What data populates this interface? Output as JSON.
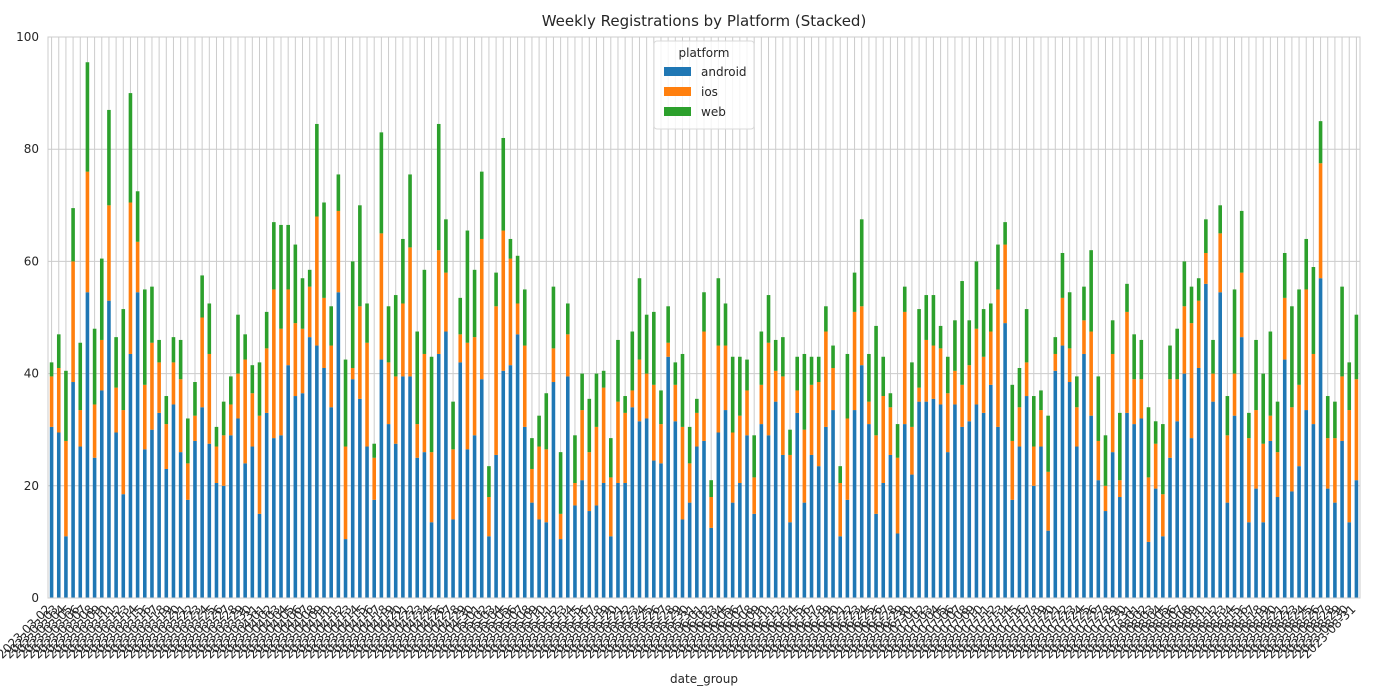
{
  "chart_data": {
    "type": "stacked_bar",
    "title": "Weekly Registrations by Platform (Stacked)",
    "x_label": "date_group",
    "legend_title": "platform",
    "legend_position": "upper center",
    "grid": true,
    "ylim": [
      0,
      100
    ],
    "yticks": [
      0,
      20,
      40,
      60,
      80,
      100
    ],
    "categories": [
      "2023-03-02",
      "2023-03-03",
      "2023-03-04",
      "2023-03-05",
      "2023-03-06",
      "2023-03-07",
      "2023-03-08",
      "2023-03-09",
      "2023-03-10",
      "2023-03-11",
      "2023-03-12",
      "2023-03-13",
      "2023-03-14",
      "2023-03-15",
      "2023-03-16",
      "2023-03-17",
      "2023-03-18",
      "2023-03-19",
      "2023-03-20",
      "2023-03-21",
      "2023-03-22",
      "2023-03-23",
      "2023-03-24",
      "2023-03-25",
      "2023-03-26",
      "2023-03-27",
      "2023-03-28",
      "2023-03-29",
      "2023-03-30",
      "2023-03-31",
      "2023-04-01",
      "2023-04-02",
      "2023-04-03",
      "2023-04-04",
      "2023-04-05",
      "2023-04-06",
      "2023-04-07",
      "2023-04-08",
      "2023-04-09",
      "2023-04-10",
      "2023-04-11",
      "2023-04-12",
      "2023-04-13",
      "2023-04-14",
      "2023-04-15",
      "2023-04-16",
      "2023-04-17",
      "2023-04-18",
      "2023-04-19",
      "2023-04-20",
      "2023-04-21",
      "2023-04-22",
      "2023-04-23",
      "2023-04-24",
      "2023-04-25",
      "2023-04-26",
      "2023-04-27",
      "2023-04-28",
      "2023-04-29",
      "2023-04-30",
      "2023-05-01",
      "2023-05-02",
      "2023-05-03",
      "2023-05-04",
      "2023-05-05",
      "2023-05-06",
      "2023-05-07",
      "2023-05-08",
      "2023-05-09",
      "2023-05-10",
      "2023-05-11",
      "2023-05-12",
      "2023-05-13",
      "2023-05-14",
      "2023-05-15",
      "2023-05-16",
      "2023-05-17",
      "2023-05-18",
      "2023-05-19",
      "2023-05-20",
      "2023-05-21",
      "2023-05-22",
      "2023-05-23",
      "2023-05-24",
      "2023-05-25",
      "2023-05-26",
      "2023-05-27",
      "2023-05-28",
      "2023-05-29",
      "2023-05-30",
      "2023-05-31",
      "2023-06-01",
      "2023-06-02",
      "2023-06-03",
      "2023-06-04",
      "2023-06-05",
      "2023-06-06",
      "2023-06-07",
      "2023-06-08",
      "2023-06-09",
      "2023-06-10",
      "2023-06-11",
      "2023-06-12",
      "2023-06-13",
      "2023-06-14",
      "2023-06-15",
      "2023-06-16",
      "2023-06-17",
      "2023-06-18",
      "2023-06-19",
      "2023-06-20",
      "2023-06-21",
      "2023-06-22",
      "2023-06-23",
      "2023-06-24",
      "2023-06-25",
      "2023-06-26",
      "2023-06-27",
      "2023-06-28",
      "2023-06-29",
      "2023-06-30",
      "2023-07-01",
      "2023-07-02",
      "2023-07-03",
      "2023-07-04",
      "2023-07-05",
      "2023-07-06",
      "2023-07-07",
      "2023-07-08",
      "2023-07-09",
      "2023-07-10",
      "2023-07-11",
      "2023-07-12",
      "2023-07-13",
      "2023-07-14",
      "2023-07-15",
      "2023-07-16",
      "2023-07-17",
      "2023-07-18",
      "2023-07-19",
      "2023-07-20",
      "2023-07-21",
      "2023-07-22",
      "2023-07-23",
      "2023-07-24",
      "2023-07-25",
      "2023-07-26",
      "2023-07-27",
      "2023-07-28",
      "2023-07-29",
      "2023-07-30",
      "2023-07-31",
      "2023-08-01",
      "2023-08-02",
      "2023-08-03",
      "2023-08-04",
      "2023-08-05",
      "2023-08-06",
      "2023-08-07",
      "2023-08-08",
      "2023-08-09",
      "2023-08-10",
      "2023-08-11",
      "2023-08-12",
      "2023-08-13",
      "2023-08-14",
      "2023-08-15",
      "2023-08-16",
      "2023-08-17",
      "2023-08-18",
      "2023-08-19",
      "2023-08-20",
      "2023-08-21",
      "2023-08-22",
      "2023-08-23",
      "2023-08-24",
      "2023-08-25",
      "2023-08-26",
      "2023-08-27",
      "2023-08-28",
      "2023-08-29",
      "2023-08-30",
      "2023-08-31"
    ],
    "series": [
      {
        "name": "android",
        "color": "#1f77b4",
        "values": [
          30.5,
          29.5,
          11,
          38.5,
          27,
          54.5,
          25,
          37,
          53,
          29.5,
          18.5,
          43.5,
          54.5,
          26.5,
          30,
          33,
          23,
          34.5,
          26,
          17.5,
          28,
          34,
          27.5,
          20.5,
          20,
          29,
          32,
          24,
          27,
          15,
          33,
          28.5,
          29,
          41.5,
          36,
          36.5,
          46.5,
          45,
          41,
          34,
          54.5,
          10.5,
          39,
          35.5,
          27,
          17.5,
          42.5,
          31,
          27.5,
          39.5,
          39.5,
          25,
          26,
          13.5,
          43.5,
          47.5,
          14,
          42,
          26.5,
          29,
          39,
          11,
          25.5,
          40.5,
          41.5,
          47,
          30.5,
          17,
          14,
          13.5,
          38.5,
          10.5,
          39.5,
          16.5,
          21,
          15.5,
          16.5,
          20.5,
          11,
          20.5,
          20.5,
          34,
          31.5,
          32,
          24.5,
          24,
          43,
          31.5,
          14,
          17,
          27,
          28,
          12.5,
          29.5,
          33.5,
          17,
          20.5,
          29,
          15,
          31,
          29,
          35,
          25.5,
          13.5,
          33,
          17,
          25.5,
          23.5,
          30.5,
          33.5,
          11,
          17.5,
          33.5,
          41.5,
          31,
          15,
          20.5,
          25.5,
          11.5,
          31,
          22,
          35,
          35,
          35.5,
          34.5,
          26,
          34.5,
          30.5,
          31.5,
          34.5,
          33,
          38,
          30.5,
          49,
          17.5,
          27,
          36,
          20,
          27,
          12,
          40.5,
          45,
          38.5,
          27,
          43.5,
          32.5,
          21,
          15.5,
          26,
          18,
          33,
          31,
          32,
          10,
          19.5,
          11,
          25,
          31.5,
          40,
          28.5,
          41,
          56,
          35,
          54.5,
          17,
          32.5,
          46.5,
          13.5,
          19.5,
          13.5,
          28,
          18,
          42.5,
          19,
          23.5,
          33.5,
          31,
          57,
          19.5,
          17,
          28,
          13.5,
          21
        ]
      },
      {
        "name": "ios",
        "color": "#ff7f0e",
        "values": [
          9,
          11.5,
          17,
          21.5,
          6.5,
          21.5,
          9.5,
          9,
          17,
          8,
          15,
          27,
          9,
          11.5,
          15.5,
          9,
          8,
          7.5,
          13,
          6.5,
          4.5,
          16,
          16,
          6.5,
          9,
          5.5,
          8,
          18.5,
          9.5,
          17.5,
          11.5,
          26.5,
          19,
          13.5,
          13,
          11.5,
          9,
          23,
          12.5,
          11,
          14.5,
          16.5,
          2,
          16.5,
          18.5,
          7.5,
          22.5,
          11,
          12,
          13,
          23,
          6,
          17.5,
          12.5,
          18.5,
          10.5,
          12.5,
          5,
          19,
          17.5,
          25,
          7,
          26.5,
          25,
          19,
          5.5,
          14.5,
          6,
          13,
          13,
          6,
          4.5,
          7.5,
          4,
          12.5,
          10.5,
          14,
          17,
          10.5,
          14.5,
          12.5,
          3,
          11,
          8,
          13.5,
          7,
          2.5,
          6.5,
          16.5,
          7,
          6,
          19.5,
          5.5,
          15.5,
          11.5,
          12.5,
          12,
          8,
          6.5,
          7,
          16.5,
          5.5,
          14,
          12,
          4,
          13,
          12.5,
          15,
          17,
          7.5,
          9.5,
          14.5,
          17.5,
          10.5,
          4,
          14,
          15.5,
          8.5,
          13.5,
          20,
          8.5,
          2.5,
          11,
          9.5,
          10,
          10.5,
          6,
          7.5,
          10,
          13.5,
          10,
          9.5,
          24.5,
          14,
          10.5,
          7,
          6,
          7,
          6.5,
          10.5,
          3,
          8.5,
          6,
          7,
          6,
          15,
          7,
          4.5,
          17.5,
          3,
          18,
          8,
          7,
          11.5,
          8,
          7.5,
          14,
          7.5,
          12,
          20.5,
          12,
          5.5,
          5,
          10.5,
          12,
          7.5,
          11.5,
          15,
          14,
          14,
          4.5,
          8,
          11,
          15,
          14.5,
          21.5,
          12.5,
          20.5,
          9,
          11.5,
          11.5,
          20,
          18
        ]
      },
      {
        "name": "web",
        "color": "#2ca02c",
        "values": [
          2.5,
          6,
          12.5,
          9.5,
          12,
          19.5,
          13.5,
          14.5,
          17,
          9,
          18,
          19.5,
          9,
          17,
          10,
          4,
          5,
          4.5,
          7,
          8,
          6,
          7.5,
          9,
          3.5,
          6,
          5,
          10.5,
          4.5,
          5,
          9.5,
          6.5,
          12,
          18.5,
          11.5,
          14,
          9,
          3,
          16.5,
          17,
          7,
          6.5,
          15.5,
          19,
          18,
          7,
          2.5,
          18,
          10,
          14.5,
          11.5,
          13,
          16.5,
          15,
          17,
          22.5,
          9.5,
          8.5,
          6.5,
          20,
          12,
          12,
          5.5,
          6,
          16.5,
          3.5,
          8.5,
          10,
          5.5,
          5.5,
          10,
          11,
          11,
          5.5,
          8.5,
          6.5,
          9.5,
          9.5,
          3,
          7,
          11,
          3,
          10.5,
          14.5,
          10.5,
          13,
          6,
          6.5,
          4,
          13,
          6.5,
          2.5,
          7,
          3,
          12,
          7.5,
          13.5,
          10.5,
          5.5,
          7.5,
          9.5,
          8.5,
          5.5,
          7,
          4.5,
          6,
          13.5,
          5,
          4.5,
          4.5,
          4,
          3,
          11.5,
          7,
          15.5,
          8.5,
          19.5,
          7,
          2.5,
          6,
          4.5,
          11.5,
          14,
          8,
          9,
          4,
          6.5,
          9,
          18.5,
          8,
          12,
          8.5,
          5,
          8,
          4,
          10,
          7,
          9.5,
          9,
          3.5,
          10,
          3,
          8,
          10,
          5.5,
          6,
          14.5,
          11.5,
          9,
          6,
          12,
          5,
          8,
          7,
          12.5,
          4,
          12.5,
          6,
          9,
          8,
          6.5,
          4,
          6,
          6,
          5,
          7,
          15,
          11,
          4.5,
          12.5,
          12.5,
          15,
          9,
          8,
          18,
          17,
          9,
          15.5,
          7.5,
          7.5,
          6.5,
          16,
          8.5,
          11.5
        ]
      }
    ]
  }
}
